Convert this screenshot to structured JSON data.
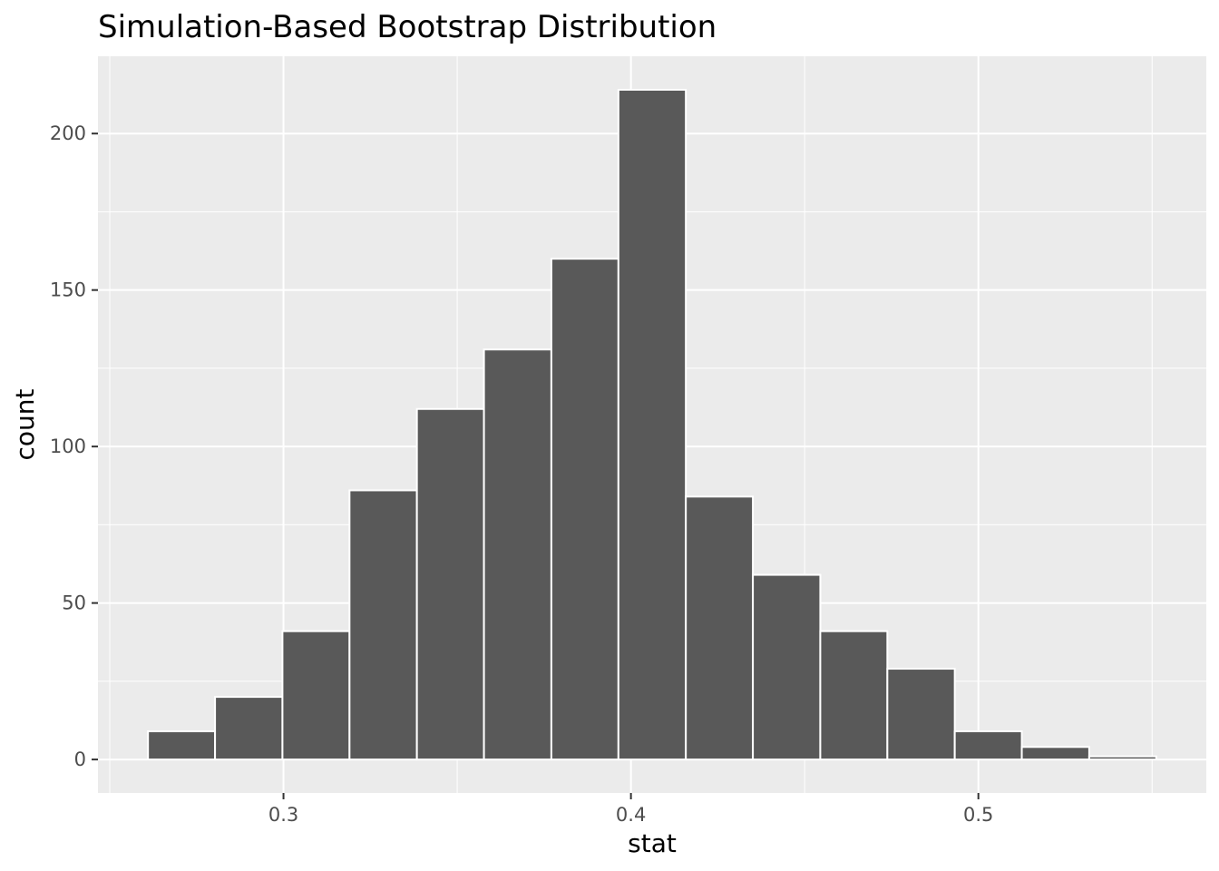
{
  "chart_data": {
    "type": "bar",
    "title": "Simulation-Based Bootstrap Distribution",
    "xlabel": "stat",
    "ylabel": "count",
    "x_bin_edges": [
      0.261,
      0.2803,
      0.2997,
      0.319,
      0.3384,
      0.3577,
      0.3771,
      0.3964,
      0.4158,
      0.4351,
      0.4545,
      0.4738,
      0.4932,
      0.5125,
      0.5319,
      0.5512
    ],
    "values": [
      9,
      20,
      41,
      86,
      112,
      131,
      160,
      214,
      84,
      59,
      41,
      29,
      9,
      4,
      1
    ],
    "xlim": [
      0.2466,
      0.5656
    ],
    "ylim": [
      -10.7,
      224.7
    ],
    "x_ticks": [
      0.3,
      0.4,
      0.5
    ],
    "x_tick_labels": [
      "0.3",
      "0.4",
      "0.5"
    ],
    "y_ticks": [
      0,
      50,
      100,
      150,
      200
    ],
    "y_tick_labels": [
      "0",
      "50",
      "100",
      "150",
      "200"
    ],
    "grid": true,
    "colors": {
      "panel_background": "#ebebeb",
      "grid_major": "#ffffff",
      "grid_minor": "#ffffff",
      "bar_fill": "#595959",
      "bar_outline": "#ffffff",
      "tick_label": "#4d4d4d",
      "axis_tick": "#333333"
    }
  }
}
